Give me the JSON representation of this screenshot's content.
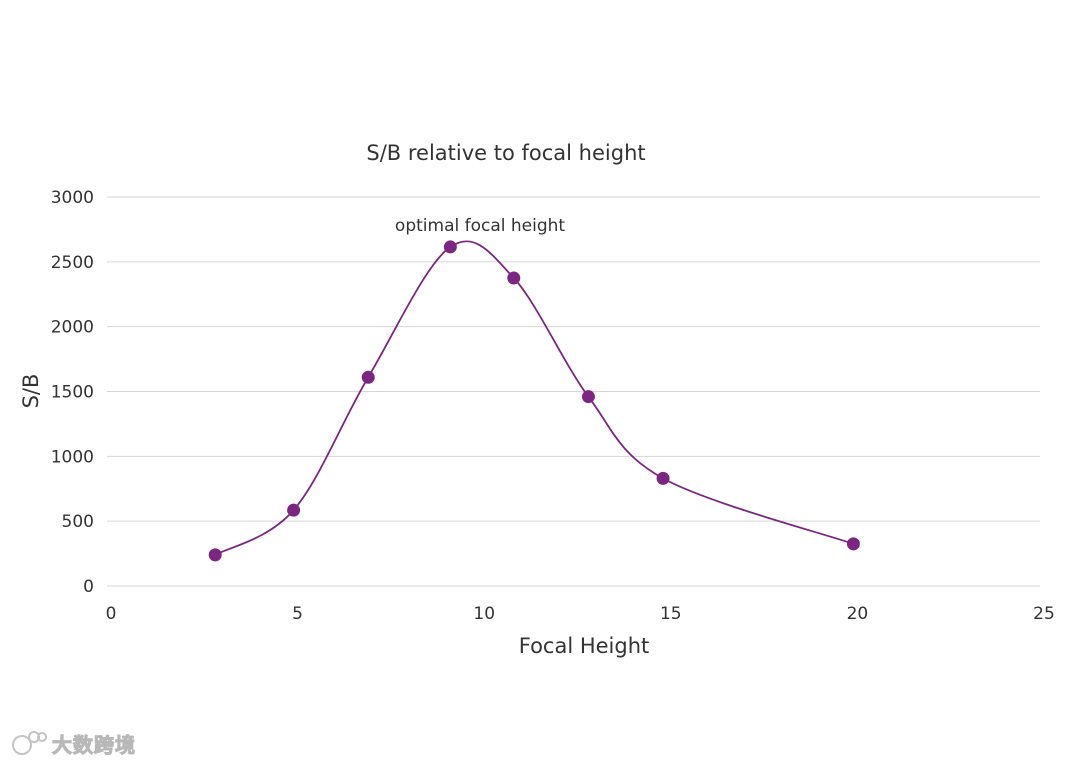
{
  "chart_data": {
    "type": "line",
    "title": "S/B relative to focal height",
    "xlabel": "Focal Height",
    "ylabel": "S/B",
    "xlim": [
      0,
      25
    ],
    "ylim": [
      0,
      3000
    ],
    "xticks": [
      "0",
      "5",
      "10",
      "15",
      "20",
      "25"
    ],
    "yticks": [
      "0",
      "500",
      "1000",
      "1500",
      "2000",
      "2500",
      "3000"
    ],
    "grid": true,
    "smooth": true,
    "series": [
      {
        "x": [
          2.9,
          5.0,
          7.0,
          9.2,
          10.9,
          12.9,
          14.9,
          20.0
        ],
        "values": [
          240,
          585,
          1610,
          2615,
          2375,
          1460,
          830,
          325
        ],
        "color": "#7b2681"
      }
    ],
    "annotations": [
      {
        "text": "optimal focal height",
        "x": 9.2,
        "y": 2615
      }
    ]
  },
  "watermark": {
    "text": "大数跨境"
  }
}
